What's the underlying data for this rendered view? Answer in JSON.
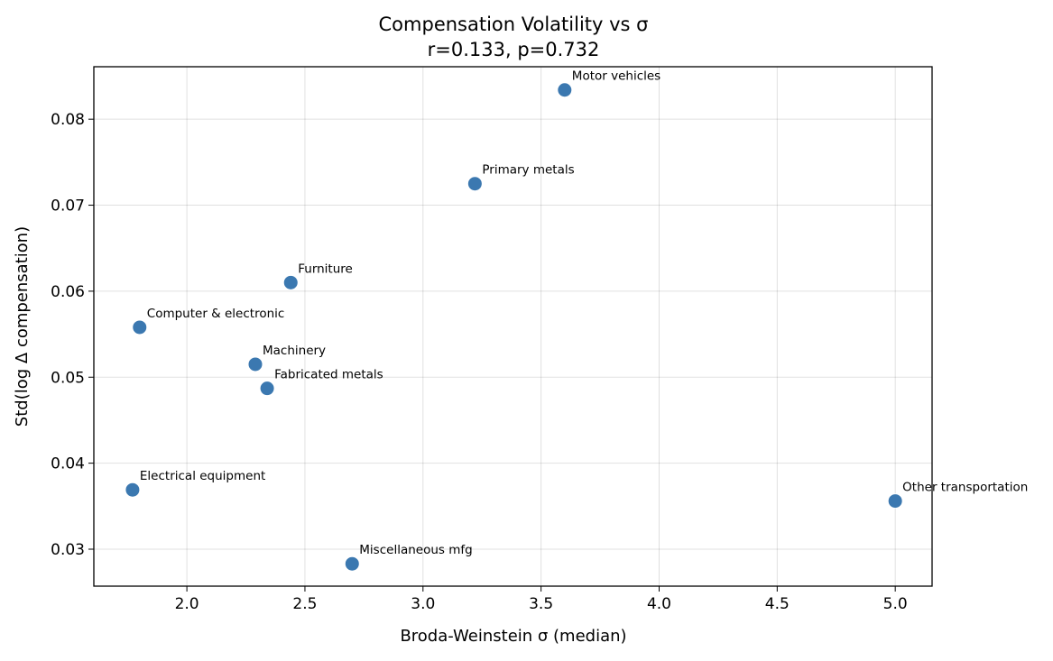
{
  "chart_data": {
    "type": "scatter",
    "title": "Compensation Volatility vs σ",
    "subtitle": "r=0.133, p=0.732",
    "xlabel": "Broda-Weinstein σ (median)",
    "ylabel": "Std(log Δ compensation)",
    "xlim": [
      1.606,
      5.156
    ],
    "ylim": [
      0.0257,
      0.0861
    ],
    "xticks": [
      2.0,
      2.5,
      3.0,
      3.5,
      4.0,
      4.5,
      5.0
    ],
    "xtick_labels": [
      "2.0",
      "2.5",
      "3.0",
      "3.5",
      "4.0",
      "4.5",
      "5.0"
    ],
    "yticks": [
      0.03,
      0.04,
      0.05,
      0.06,
      0.07,
      0.08
    ],
    "ytick_labels": [
      "0.03",
      "0.04",
      "0.05",
      "0.06",
      "0.07",
      "0.08"
    ],
    "grid": true,
    "marker_color": "#3b78b0",
    "points": [
      {
        "label": "Motor vehicles",
        "x": 3.6,
        "y": 0.0834
      },
      {
        "label": "Primary metals",
        "x": 3.22,
        "y": 0.0725
      },
      {
        "label": "Furniture",
        "x": 2.44,
        "y": 0.061
      },
      {
        "label": "Computer & electronic",
        "x": 1.8,
        "y": 0.0558
      },
      {
        "label": "Machinery",
        "x": 2.29,
        "y": 0.0515
      },
      {
        "label": "Fabricated metals",
        "x": 2.34,
        "y": 0.0487
      },
      {
        "label": "Electrical equipment",
        "x": 1.77,
        "y": 0.0369
      },
      {
        "label": "Miscellaneous mfg",
        "x": 2.7,
        "y": 0.0283
      },
      {
        "label": "Other transportation",
        "x": 5.0,
        "y": 0.0356
      }
    ]
  }
}
